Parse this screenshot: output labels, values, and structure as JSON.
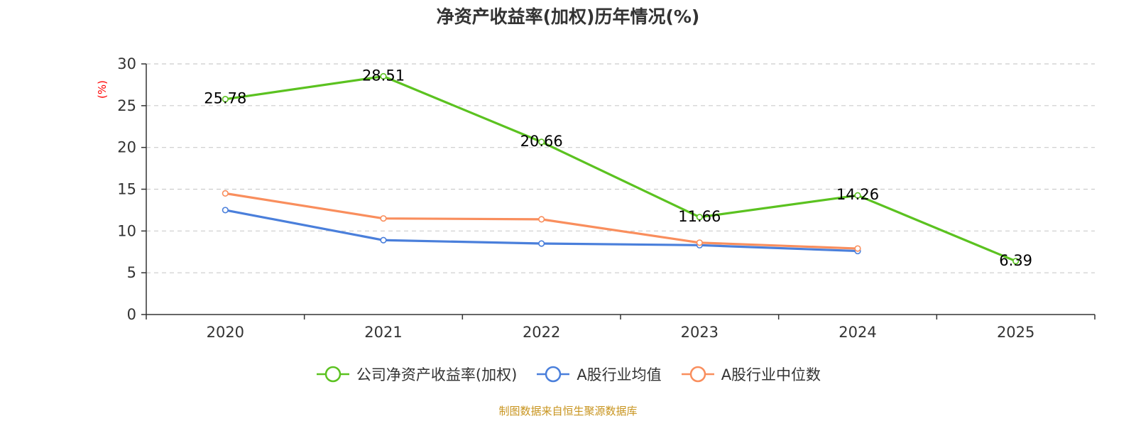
{
  "chart_data": {
    "type": "line",
    "title": "净资产收益率(加权)历年情况(%)",
    "ylabel": "(%)",
    "xlabel": "",
    "categories": [
      "2020",
      "2021",
      "2022",
      "2023",
      "2024",
      "2025"
    ],
    "ylim": [
      0,
      30
    ],
    "yticks": [
      0,
      5,
      10,
      15,
      20,
      25,
      30
    ],
    "grid": true,
    "legend_position": "bottom",
    "series": [
      {
        "name": "公司净资产收益率(加权)",
        "color": "#5bc220",
        "values": [
          25.78,
          28.51,
          20.66,
          11.66,
          14.26,
          6.39
        ],
        "labels": [
          "25.78",
          "28.51",
          "20.66",
          "11.66",
          "14.26",
          "6.39"
        ],
        "show_labels": true
      },
      {
        "name": "A股行业均值",
        "color": "#4a7fdb",
        "values": [
          12.5,
          8.9,
          8.5,
          8.3,
          7.6,
          null
        ],
        "show_labels": false
      },
      {
        "name": "A股行业中位数",
        "color": "#f98e5d",
        "values": [
          14.5,
          11.5,
          11.4,
          8.6,
          7.9,
          null
        ],
        "show_labels": false
      }
    ]
  },
  "source": "制图数据来自恒生聚源数据库",
  "colors": {
    "axis": "#333333",
    "grid": "#cccccc",
    "ylabel": "#ff0000",
    "source": "#c8941e"
  }
}
